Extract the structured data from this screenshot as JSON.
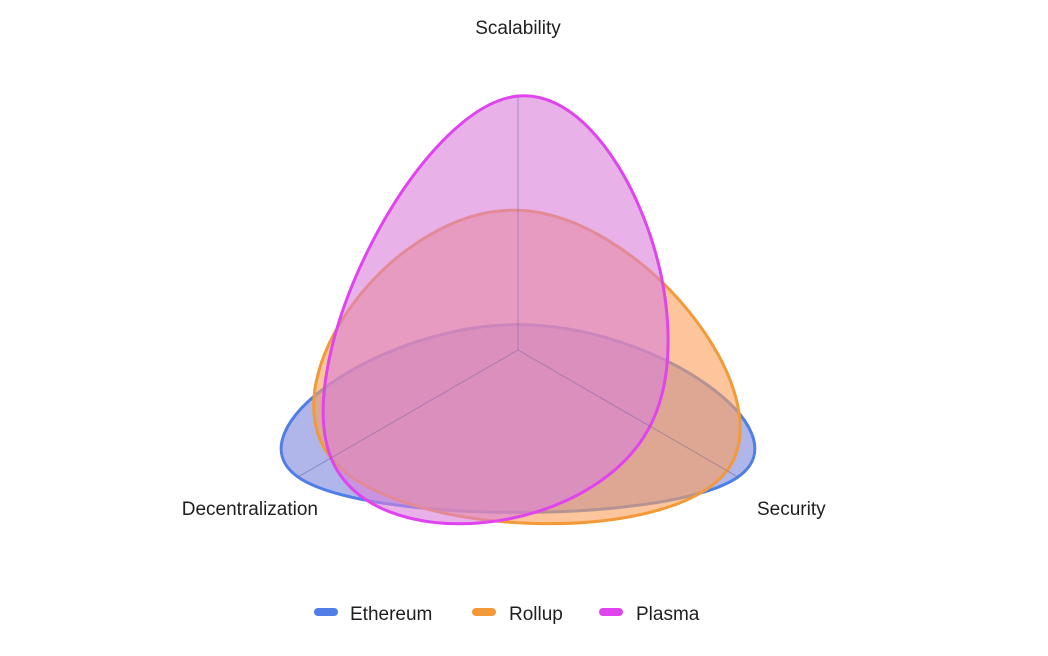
{
  "chart_data": {
    "type": "radar",
    "title": "",
    "categories": [
      "Scalability",
      "Security",
      "Decentralization"
    ],
    "range": [
      0,
      10
    ],
    "curved": true,
    "series": [
      {
        "name": "Ethereum",
        "color": "#4f7fe6",
        "fill": "#7b84dc",
        "values": [
          1,
          10,
          10
        ]
      },
      {
        "name": "Rollup",
        "color": "#f29a38",
        "fill": "#fb9f5a",
        "values": [
          5.5,
          9.5,
          8.5
        ]
      },
      {
        "name": "Plasma",
        "color": "#e044ee",
        "fill": "#d97fd8",
        "values": [
          10,
          6,
          8.5
        ]
      }
    ],
    "legend_position": "bottom"
  }
}
